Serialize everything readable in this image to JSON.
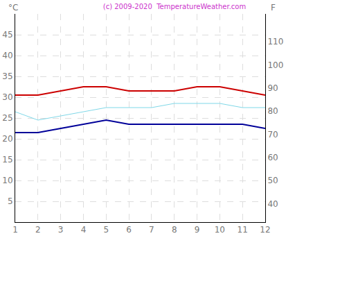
{
  "chart_data": {
    "type": "line",
    "title": "(c) 2009-2020  TemperatureWeather.com",
    "y_label": "°C",
    "y2_label": "F",
    "x": [
      1,
      2,
      3,
      4,
      5,
      6,
      7,
      8,
      9,
      10,
      11,
      12
    ],
    "xlim": [
      1,
      12
    ],
    "xticks": [
      1,
      2,
      3,
      4,
      5,
      6,
      7,
      8,
      9,
      10,
      11,
      12
    ],
    "ylim": [
      0,
      50
    ],
    "yticks": [
      5,
      10,
      15,
      20,
      25,
      30,
      35,
      40,
      45
    ],
    "y2lim": [
      32,
      122
    ],
    "y2ticks": [
      40,
      50,
      60,
      70,
      80,
      90,
      100,
      110
    ],
    "grid": true,
    "series": [
      {
        "color": "#cc0000",
        "values": [
          30.5,
          30.5,
          31.5,
          32.5,
          32.5,
          31.5,
          31.5,
          31.5,
          32.5,
          32.5,
          31.5,
          30.5
        ]
      },
      {
        "color": "#7fd8e8",
        "values": [
          26.5,
          24.5,
          25.5,
          26.5,
          27.5,
          27.5,
          27.5,
          28.5,
          28.5,
          28.5,
          27.5,
          27.5
        ]
      },
      {
        "color": "#000099",
        "values": [
          21.5,
          21.5,
          22.5,
          23.5,
          24.5,
          23.5,
          23.5,
          23.5,
          23.5,
          23.5,
          23.5,
          22.5
        ]
      }
    ]
  }
}
